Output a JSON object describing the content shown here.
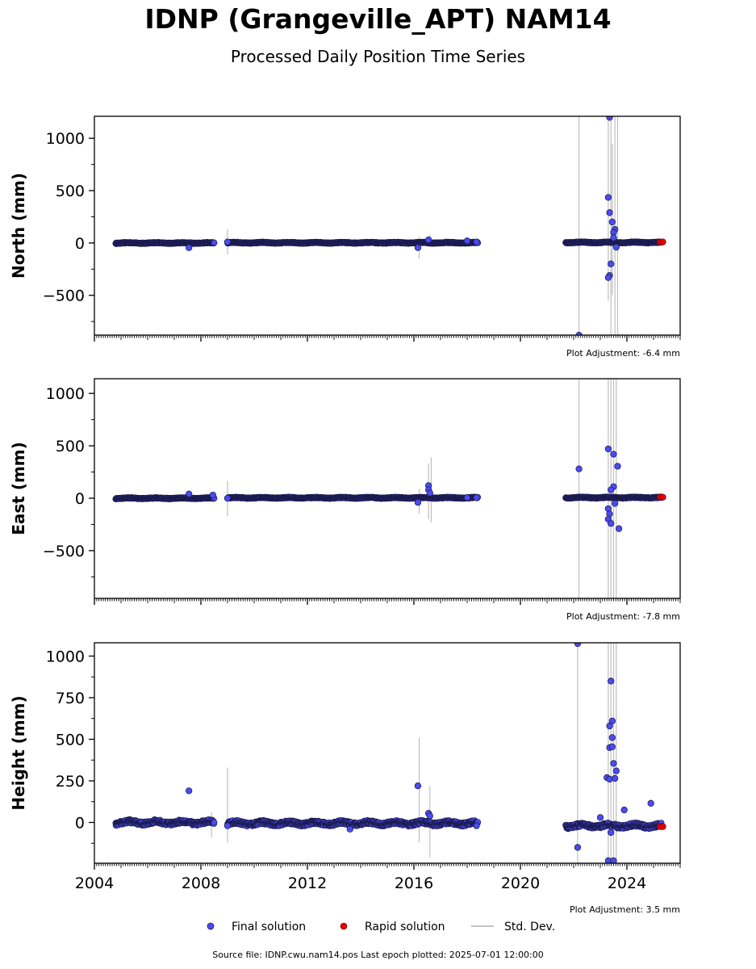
{
  "title": "IDNP (Grangeville_APT) NAM14",
  "subtitle": "Processed Daily Position Time Series",
  "footer": "Source file: IDNP.cwu.nam14.pos  Last epoch plotted: 2025-07-01 12:00:00",
  "colors": {
    "final": "#4b4bef",
    "final_edge": "#1a1a4a",
    "rapid": "#e00000",
    "stddev": "#b0b0b0"
  },
  "legend": {
    "final": "Final solution",
    "rapid": "Rapid solution",
    "stddev": "Std. Dev."
  },
  "chart_data": [
    {
      "type": "scatter",
      "ylabel": "North (mm)",
      "adjustment": "Plot Adjustment: -6.4 mm",
      "xlim": [
        2004,
        2026
      ],
      "ylim": [
        -880,
        1210
      ],
      "yticks": [
        1000,
        500,
        0,
        -500
      ],
      "ytick_labels": [
        "1000",
        "500",
        "0",
        "−500"
      ],
      "xticks": [
        2004,
        2008,
        2012,
        2016,
        2020,
        2024
      ],
      "xtick_labels": [],
      "segments": [
        {
          "start": 2004.8,
          "end": 2008.5,
          "base": 0,
          "spread": 6
        },
        {
          "start": 2009.0,
          "end": 2018.4,
          "base": 2,
          "spread": 6
        },
        {
          "start": 2021.7,
          "end": 2025.3,
          "base": 5,
          "spread": 6
        }
      ],
      "outliers": [
        {
          "x": 2007.55,
          "y": -45
        },
        {
          "x": 2009.0,
          "y": 10
        },
        {
          "x": 2016.15,
          "y": -45
        },
        {
          "x": 2016.55,
          "y": 30
        },
        {
          "x": 2018.0,
          "y": 20
        },
        {
          "x": 2018.35,
          "y": 10
        },
        {
          "x": 2022.2,
          "y": -880
        },
        {
          "x": 2023.35,
          "y": 1200
        },
        {
          "x": 2023.3,
          "y": 435
        },
        {
          "x": 2023.35,
          "y": 290
        },
        {
          "x": 2023.45,
          "y": 200
        },
        {
          "x": 2023.55,
          "y": 130
        },
        {
          "x": 2023.5,
          "y": 100
        },
        {
          "x": 2023.4,
          "y": -200
        },
        {
          "x": 2023.35,
          "y": -310
        },
        {
          "x": 2023.3,
          "y": -330
        },
        {
          "x": 2023.5,
          "y": 50
        },
        {
          "x": 2023.6,
          "y": -40
        }
      ],
      "rapid": [
        {
          "x": 2025.25,
          "y": 10
        },
        {
          "x": 2025.35,
          "y": 10
        }
      ],
      "stddev": [
        {
          "x": 2009.0,
          "lo": -110,
          "hi": 130
        },
        {
          "x": 2016.2,
          "lo": -150,
          "hi": 60
        },
        {
          "x": 2016.6,
          "lo": -40,
          "hi": 80
        },
        {
          "x": 2022.2,
          "lo": -880,
          "hi": 1210
        },
        {
          "x": 2023.3,
          "lo": -550,
          "hi": 1210
        },
        {
          "x": 2023.4,
          "lo": -880,
          "hi": 1210
        },
        {
          "x": 2023.45,
          "lo": -500,
          "hi": 950
        },
        {
          "x": 2023.55,
          "lo": -880,
          "hi": 1210
        },
        {
          "x": 2023.65,
          "lo": -880,
          "hi": 1210
        }
      ]
    },
    {
      "type": "scatter",
      "ylabel": "East (mm)",
      "adjustment": "Plot Adjustment: -7.8 mm",
      "xlim": [
        2004,
        2026
      ],
      "ylim": [
        -955,
        1140
      ],
      "yticks": [
        1000,
        500,
        0,
        -500
      ],
      "ytick_labels": [
        "1000",
        "500",
        "0",
        "−500"
      ],
      "xticks": [
        2004,
        2008,
        2012,
        2016,
        2020,
        2024
      ],
      "xtick_labels": [],
      "segments": [
        {
          "start": 2004.8,
          "end": 2008.5,
          "base": 0,
          "spread": 6
        },
        {
          "start": 2009.0,
          "end": 2018.4,
          "base": 4,
          "spread": 6
        },
        {
          "start": 2021.7,
          "end": 2025.3,
          "base": 6,
          "spread": 6
        }
      ],
      "outliers": [
        {
          "x": 2007.55,
          "y": 40
        },
        {
          "x": 2008.45,
          "y": 30
        },
        {
          "x": 2009.0,
          "y": 0
        },
        {
          "x": 2016.15,
          "y": -40
        },
        {
          "x": 2016.55,
          "y": 120
        },
        {
          "x": 2016.55,
          "y": 80
        },
        {
          "x": 2016.6,
          "y": 50
        },
        {
          "x": 2018.0,
          "y": 5
        },
        {
          "x": 2018.35,
          "y": 5
        },
        {
          "x": 2022.2,
          "y": 280
        },
        {
          "x": 2023.3,
          "y": 470
        },
        {
          "x": 2023.5,
          "y": 420
        },
        {
          "x": 2023.65,
          "y": 305
        },
        {
          "x": 2023.5,
          "y": 110
        },
        {
          "x": 2023.4,
          "y": 80
        },
        {
          "x": 2023.3,
          "y": -100
        },
        {
          "x": 2023.35,
          "y": -150
        },
        {
          "x": 2023.3,
          "y": -200
        },
        {
          "x": 2023.4,
          "y": -240
        },
        {
          "x": 2023.7,
          "y": -290
        },
        {
          "x": 2023.55,
          "y": -50
        }
      ],
      "rapid": [
        {
          "x": 2025.25,
          "y": 10
        },
        {
          "x": 2025.35,
          "y": 10
        }
      ],
      "stddev": [
        {
          "x": 2009.0,
          "lo": -170,
          "hi": 165
        },
        {
          "x": 2016.2,
          "lo": -150,
          "hi": 90
        },
        {
          "x": 2016.55,
          "lo": -200,
          "hi": 330
        },
        {
          "x": 2016.65,
          "lo": -230,
          "hi": 390
        },
        {
          "x": 2022.2,
          "lo": -955,
          "hi": 1140
        },
        {
          "x": 2023.3,
          "lo": -955,
          "hi": 1140
        },
        {
          "x": 2023.4,
          "lo": -955,
          "hi": 1140
        },
        {
          "x": 2023.5,
          "lo": -955,
          "hi": 1140
        },
        {
          "x": 2023.6,
          "lo": -955,
          "hi": 1140
        }
      ]
    },
    {
      "type": "scatter",
      "ylabel": "Height (mm)",
      "adjustment": "Plot Adjustment: 3.5 mm",
      "xlim": [
        2004,
        2026
      ],
      "ylim": [
        -245,
        1080
      ],
      "yticks": [
        1000,
        750,
        500,
        250,
        0
      ],
      "ytick_labels": [
        "1000",
        "750",
        "500",
        "250",
        "0"
      ],
      "xticks": [
        2004,
        2008,
        2012,
        2016,
        2020,
        2024
      ],
      "xtick_labels": [
        "2004",
        "2008",
        "2012",
        "2016",
        "2020",
        "2024"
      ],
      "segments": [
        {
          "start": 2004.8,
          "end": 2008.5,
          "base": 0,
          "spread": 14
        },
        {
          "start": 2009.0,
          "end": 2018.4,
          "base": -5,
          "spread": 14
        },
        {
          "start": 2021.7,
          "end": 2025.3,
          "base": -20,
          "spread": 14
        }
      ],
      "outliers": [
        {
          "x": 2007.55,
          "y": 190
        },
        {
          "x": 2009.0,
          "y": -20
        },
        {
          "x": 2013.6,
          "y": -40
        },
        {
          "x": 2016.15,
          "y": 220
        },
        {
          "x": 2016.55,
          "y": 55
        },
        {
          "x": 2016.6,
          "y": 40
        },
        {
          "x": 2018.35,
          "y": -20
        },
        {
          "x": 2022.15,
          "y": 1075
        },
        {
          "x": 2022.15,
          "y": -150
        },
        {
          "x": 2023.4,
          "y": 850
        },
        {
          "x": 2023.45,
          "y": 610
        },
        {
          "x": 2023.35,
          "y": 580
        },
        {
          "x": 2023.45,
          "y": 510
        },
        {
          "x": 2023.35,
          "y": 450
        },
        {
          "x": 2023.45,
          "y": 455
        },
        {
          "x": 2023.5,
          "y": 355
        },
        {
          "x": 2023.6,
          "y": 310
        },
        {
          "x": 2023.25,
          "y": 270
        },
        {
          "x": 2023.35,
          "y": 260
        },
        {
          "x": 2023.55,
          "y": 265
        },
        {
          "x": 2023.3,
          "y": -230
        },
        {
          "x": 2023.5,
          "y": -230
        },
        {
          "x": 2023.9,
          "y": 75
        },
        {
          "x": 2024.9,
          "y": 115
        },
        {
          "x": 2023.4,
          "y": -60
        },
        {
          "x": 2023.0,
          "y": 30
        }
      ],
      "rapid": [
        {
          "x": 2025.25,
          "y": -25
        },
        {
          "x": 2025.35,
          "y": -25
        }
      ],
      "stddev": [
        {
          "x": 2008.4,
          "lo": -90,
          "hi": 60
        },
        {
          "x": 2009.0,
          "lo": -120,
          "hi": 330
        },
        {
          "x": 2016.2,
          "lo": -120,
          "hi": 510
        },
        {
          "x": 2016.6,
          "lo": -210,
          "hi": 220
        },
        {
          "x": 2022.15,
          "lo": -245,
          "hi": 1080
        },
        {
          "x": 2023.3,
          "lo": -245,
          "hi": 1080
        },
        {
          "x": 2023.4,
          "lo": -245,
          "hi": 1080
        },
        {
          "x": 2023.5,
          "lo": -245,
          "hi": 1080
        },
        {
          "x": 2023.6,
          "lo": -245,
          "hi": 1080
        }
      ]
    }
  ]
}
